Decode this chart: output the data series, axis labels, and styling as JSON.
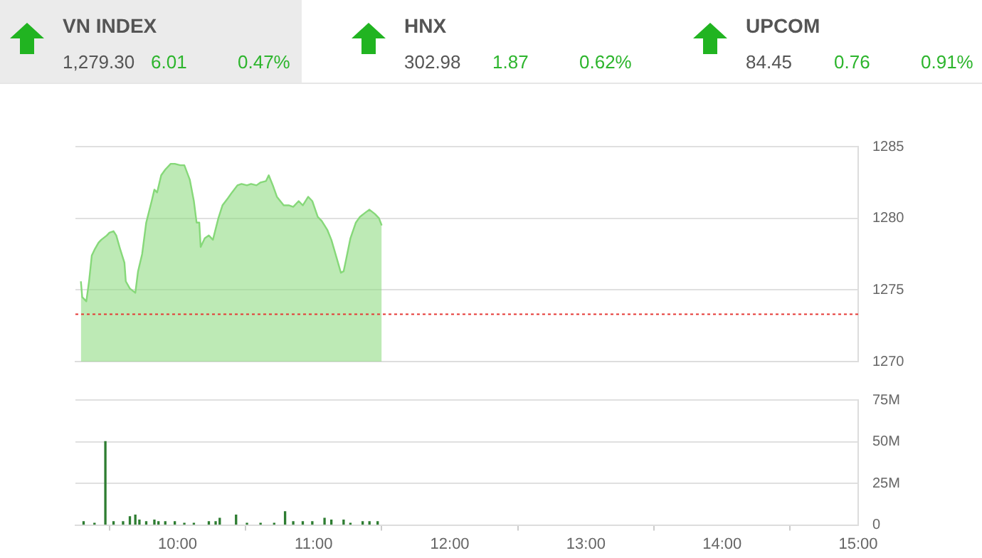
{
  "chart_data": [
    {
      "type": "other",
      "annotations": [
        "VN INDEX",
        "1,279.30",
        "6.01",
        "0.47%",
        "HNX",
        "302.98",
        "1.87",
        "0.62%",
        "UPCOM",
        "84.45",
        "0.76",
        "0.91%"
      ]
    },
    {
      "type": "area",
      "x": [
        9.29,
        9.3,
        9.33,
        9.35,
        9.37,
        9.39,
        9.42,
        9.44,
        9.48,
        9.5,
        9.53,
        9.55,
        9.58,
        9.61,
        9.62,
        9.65,
        9.69,
        9.71,
        9.74,
        9.77,
        9.81,
        9.83,
        9.85,
        9.88,
        9.91,
        9.95,
        9.98,
        10.02,
        10.05,
        10.09,
        10.12,
        10.14,
        10.16,
        10.17,
        10.2,
        10.23,
        10.26,
        10.3,
        10.33,
        10.37,
        10.4,
        10.44,
        10.47,
        10.51,
        10.54,
        10.58,
        10.61,
        10.65,
        10.67,
        10.7,
        10.73,
        10.78,
        10.82,
        10.85,
        10.89,
        10.92,
        10.96,
        10.99,
        11.03,
        11.06,
        11.1,
        11.13,
        11.17,
        11.2,
        11.22,
        11.24,
        11.27,
        11.31,
        11.34,
        11.38,
        11.41,
        11.45,
        11.48,
        11.5
      ],
      "series": [
        {
          "color": "#86d879",
          "values": [
            1275.6,
            1274.5,
            1274.2,
            1275.6,
            1277.4,
            1277.8,
            1278.3,
            1278.5,
            1278.8,
            1279.0,
            1279.1,
            1278.8,
            1277.8,
            1276.9,
            1275.6,
            1275.1,
            1274.8,
            1276.3,
            1277.5,
            1279.7,
            1281.2,
            1282.0,
            1281.8,
            1283.0,
            1283.4,
            1283.8,
            1283.8,
            1283.7,
            1283.7,
            1282.7,
            1281.2,
            1279.7,
            1279.7,
            1278.0,
            1278.6,
            1278.8,
            1278.5,
            1280.0,
            1280.9,
            1281.4,
            1281.8,
            1282.3,
            1282.4,
            1282.3,
            1282.4,
            1282.3,
            1282.5,
            1282.6,
            1283.0,
            1282.3,
            1281.5,
            1280.9,
            1280.9,
            1280.8,
            1281.2,
            1280.9,
            1281.5,
            1281.2,
            1280.1,
            1279.8,
            1279.2,
            1278.5,
            1277.2,
            1276.2,
            1276.3,
            1277.2,
            1278.6,
            1279.7,
            1280.1,
            1280.4,
            1280.6,
            1280.3,
            1280.0,
            1279.5
          ]
        }
      ],
      "xlim": [
        9.25,
        15
      ],
      "ylim": [
        1270,
        1285
      ],
      "yticks": [
        1270,
        1275,
        1280,
        1285
      ],
      "grid": "y",
      "tick_labels": "y",
      "legend": false,
      "ref_lines": [
        {
          "axis": "y",
          "value": 1273.3,
          "color": "#e53935",
          "line_style": "dotted"
        }
      ]
    },
    {
      "type": "bar",
      "x": [
        9.31,
        9.39,
        9.47,
        9.53,
        9.6,
        9.65,
        9.69,
        9.72,
        9.77,
        9.83,
        9.86,
        9.91,
        9.98,
        10.05,
        10.12,
        10.23,
        10.28,
        10.31,
        10.43,
        10.51,
        10.61,
        10.71,
        10.79,
        10.85,
        10.92,
        10.99,
        11.08,
        11.13,
        11.22,
        11.27,
        11.36,
        11.41,
        11.47
      ],
      "series": [
        {
          "color": "#2e7d32",
          "values": [
            2,
            1,
            50,
            2,
            2,
            5,
            6,
            3,
            2,
            3,
            2,
            2,
            2,
            1,
            1,
            2,
            2,
            4,
            6,
            1,
            1,
            1,
            8,
            2,
            2,
            2,
            4,
            3,
            3,
            1,
            2,
            2,
            2
          ]
        }
      ],
      "xlim": [
        9.25,
        15
      ],
      "xticks": [
        {
          "value": 10,
          "label": "10:00"
        },
        {
          "value": 11,
          "label": "11:00"
        },
        {
          "value": 12,
          "label": "12:00"
        },
        {
          "value": 13,
          "label": "13:00"
        },
        {
          "value": 14,
          "label": "14:00"
        },
        {
          "value": 15,
          "label": "15:00"
        }
      ],
      "ylim": [
        0,
        75
      ],
      "yticks": [
        0,
        {
          "value": 25,
          "label": "25M"
        },
        {
          "value": 50,
          "label": "50M"
        },
        {
          "value": 75,
          "label": "75M"
        }
      ],
      "grid": "y",
      "legend": false
    }
  ]
}
